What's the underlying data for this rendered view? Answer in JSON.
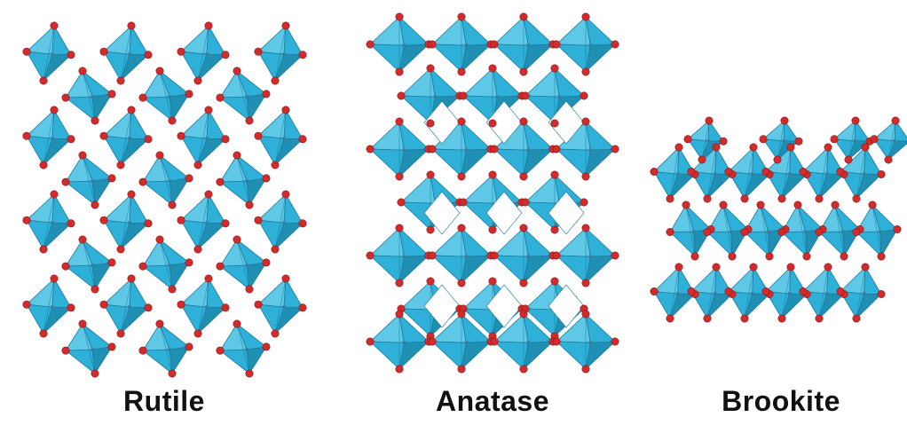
{
  "figure": {
    "panels": [
      {
        "label": "Rutile"
      },
      {
        "label": "Anatase"
      },
      {
        "label": "Brookite"
      }
    ],
    "colors": {
      "octahedron_light": "#5ec8e6",
      "octahedron_mid": "#2eb0d8",
      "octahedron_dark": "#1f8fb3",
      "oxygen_atom": "#d22b2b",
      "titanium_atom": "#3a7fa0"
    }
  }
}
